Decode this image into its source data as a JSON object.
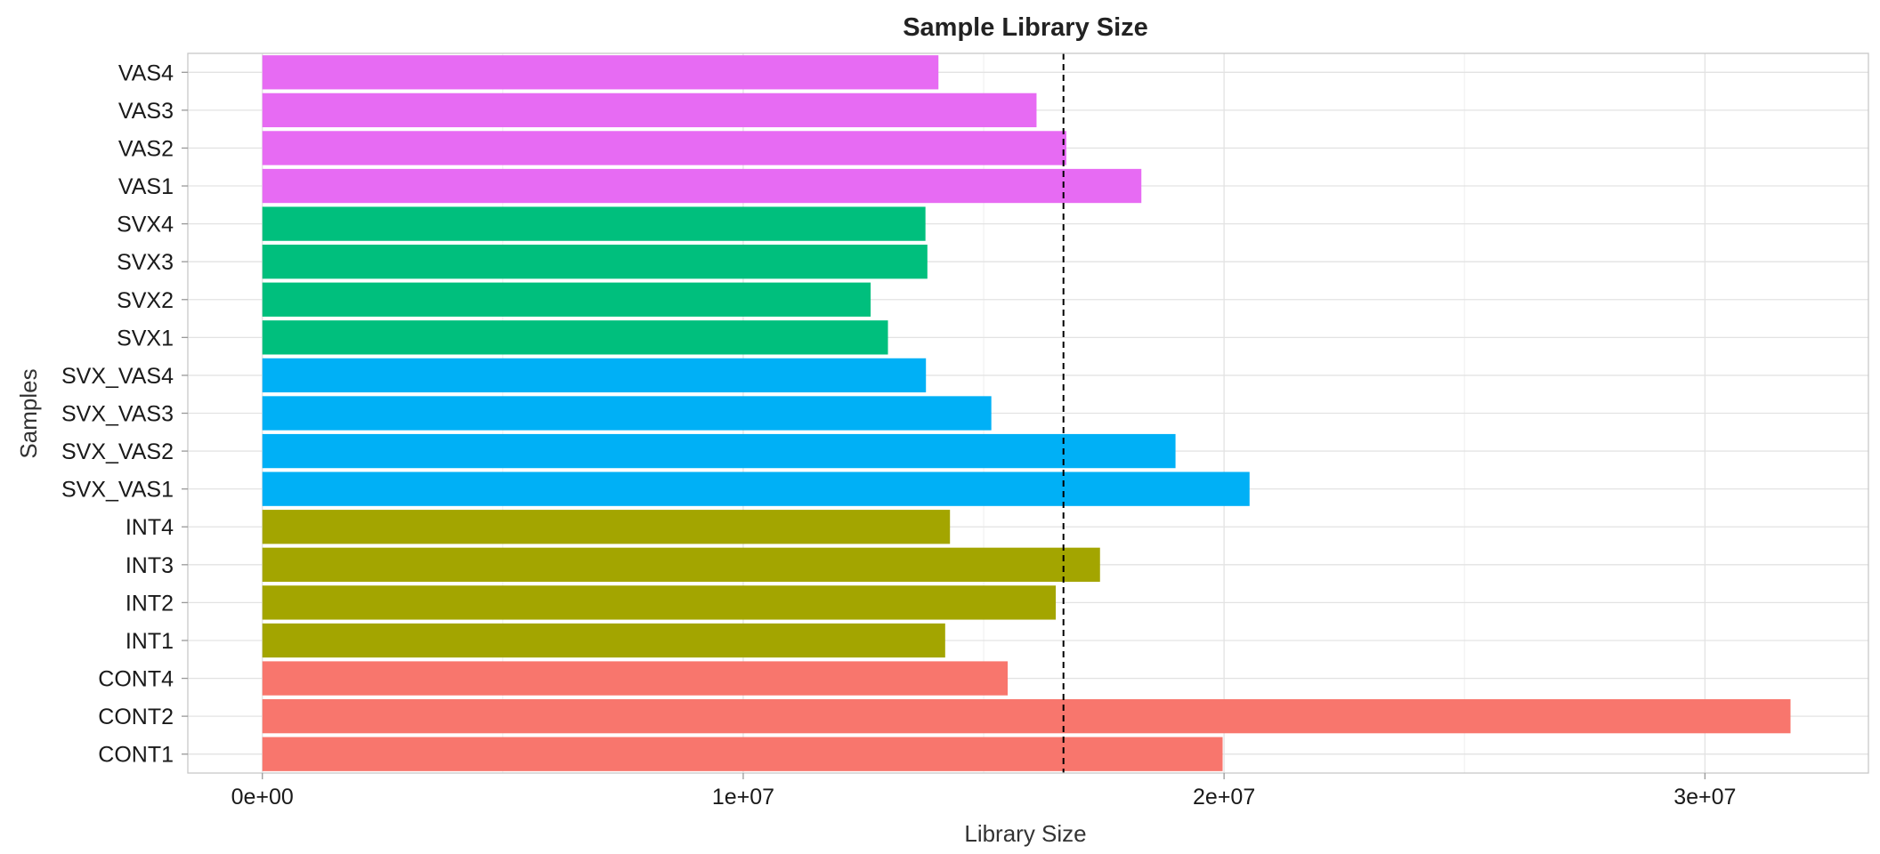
{
  "chart_data": {
    "type": "bar",
    "orientation": "horizontal",
    "title": "Sample Library Size",
    "xlabel": "Library Size",
    "ylabel": "Samples",
    "xlim": [
      -1550000,
      33400000
    ],
    "x_ticks": [
      0,
      10000000,
      20000000,
      30000000
    ],
    "x_tick_labels": [
      "0e+00",
      "1e+07",
      "2e+07",
      "3e+07"
    ],
    "grid": true,
    "legend": "none",
    "reference_line": {
      "value": 16660000,
      "style": "dashed",
      "color": "#000000"
    },
    "group_colors": {
      "CONT": "#F8766D",
      "INT": "#A3A500",
      "SVX_VAS": "#00B0F6",
      "SVX": "#00BF7D",
      "VAS": "#E76BF3"
    },
    "categories": [
      "CONT1",
      "CONT2",
      "CONT4",
      "INT1",
      "INT2",
      "INT3",
      "INT4",
      "SVX_VAS1",
      "SVX_VAS2",
      "SVX_VAS3",
      "SVX_VAS4",
      "SVX1",
      "SVX2",
      "SVX3",
      "SVX4",
      "VAS1",
      "VAS2",
      "VAS3",
      "VAS4"
    ],
    "groups": [
      "CONT",
      "CONT",
      "CONT",
      "INT",
      "INT",
      "INT",
      "INT",
      "SVX_VAS",
      "SVX_VAS",
      "SVX_VAS",
      "SVX_VAS",
      "SVX",
      "SVX",
      "SVX",
      "SVX",
      "VAS",
      "VAS",
      "VAS",
      "VAS"
    ],
    "values": [
      19970000,
      31780000,
      15500000,
      14200000,
      16500000,
      17420000,
      14300000,
      20530000,
      18990000,
      15160000,
      13800000,
      13010000,
      12650000,
      13830000,
      13790000,
      18280000,
      16720000,
      16100000,
      14060000
    ]
  }
}
